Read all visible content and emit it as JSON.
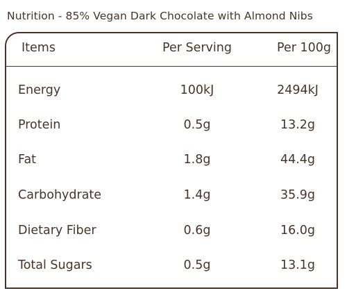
{
  "title": "Nutrition - 85% Vegan Dark Chocolate with Almond Nibs",
  "table": {
    "headers": {
      "items": "Items",
      "per_serving": "Per Serving",
      "per_100g": "Per 100g"
    },
    "rows": [
      {
        "name": "Energy",
        "per_serving": "100kJ",
        "per_100g": "2494kJ"
      },
      {
        "name": "Protein",
        "per_serving": "0.5g",
        "per_100g": "13.2g"
      },
      {
        "name": "Fat",
        "per_serving": "1.8g",
        "per_100g": "44.4g"
      },
      {
        "name": "Carbohydrate",
        "per_serving": "1.4g",
        "per_100g": "35.9g"
      },
      {
        "name": "Dietary Fiber",
        "per_serving": "0.6g",
        "per_100g": "16.0g"
      },
      {
        "name": "Total Sugars",
        "per_serving": "0.5g",
        "per_100g": "13.1g"
      }
    ]
  },
  "colors": {
    "text": "#4a3426",
    "border": "#4a3426",
    "background": "#ffffff"
  }
}
